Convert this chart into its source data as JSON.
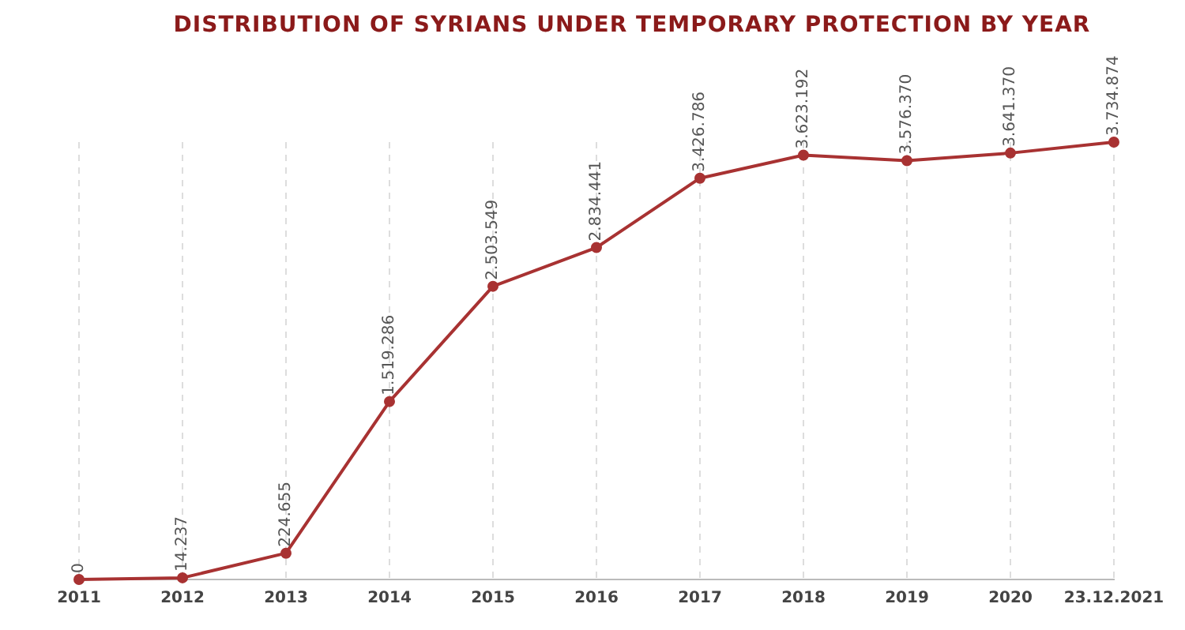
{
  "chart_data": {
    "type": "line",
    "title": "DISTRIBUTION OF SYRIANS UNDER TEMPORARY PROTECTION BY YEAR",
    "categories": [
      "2011",
      "2012",
      "2013",
      "2014",
      "2015",
      "2016",
      "2017",
      "2018",
      "2019",
      "2020",
      "23.12.2021"
    ],
    "series": [
      {
        "color": "#a83232",
        "values": [
          0,
          14237,
          224655,
          1519286,
          2503549,
          2834441,
          3426786,
          3623192,
          3576370,
          3641370,
          3734874
        ],
        "value_labels": [
          "0",
          "14.237",
          "224.655",
          "1.519.286",
          "2.503.549",
          "2.834.441",
          "3.426.786",
          "3.623.192",
          "3.576.370",
          "3.641.370",
          "3.734.874"
        ]
      }
    ],
    "grid": "x",
    "legend": false,
    "marker": "circle",
    "line_style": "solid"
  }
}
